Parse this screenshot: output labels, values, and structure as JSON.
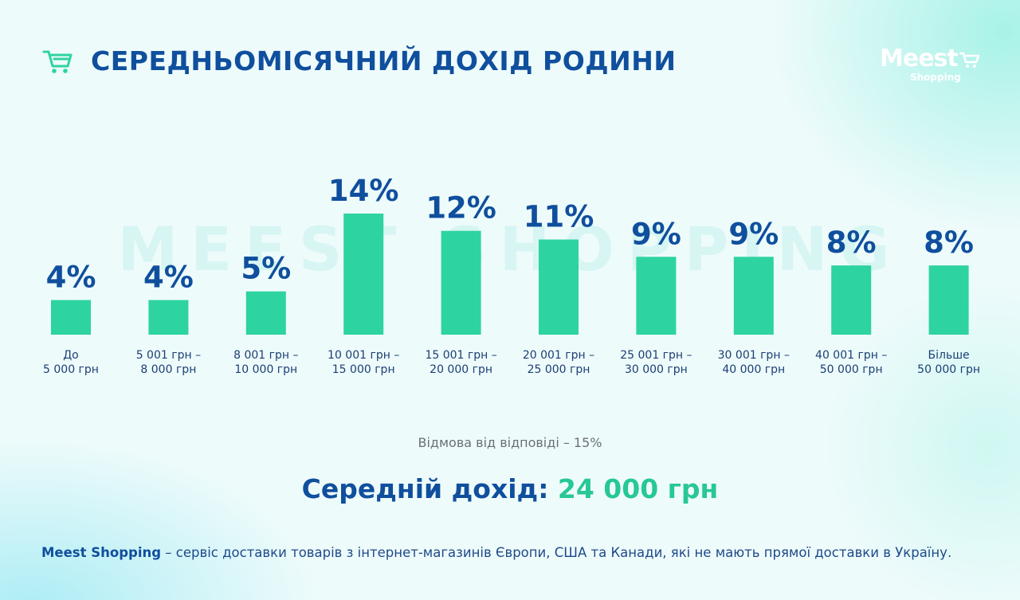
{
  "header": {
    "title": "СЕРЕДНЬОМІСЯЧНИЙ ДОХІД РОДИНИ",
    "icon": "shopping-cart-icon",
    "icon_color": "#2fd3a0"
  },
  "logo": {
    "main": "Meest",
    "sub": "Shopping",
    "icon": "shopping-cart-icon"
  },
  "watermark": "MEEST SHOPPING",
  "colors": {
    "bar": "#2dd3a0",
    "title": "#0f4f9d",
    "accent": "#27c796"
  },
  "chart_data": {
    "type": "bar",
    "categories": [
      [
        "До",
        "5 000 грн"
      ],
      [
        "5 001 грн –",
        "8 000 грн"
      ],
      [
        "8 001 грн –",
        "10 000 грн"
      ],
      [
        "10 001 грн –",
        "15 000 грн"
      ],
      [
        "15 001 грн –",
        "20 000 грн"
      ],
      [
        "20 001 грн –",
        "25 000 грн"
      ],
      [
        "25 001 грн –",
        "30 000 грн"
      ],
      [
        "30 001 грн –",
        "40 000 грн"
      ],
      [
        "40 001 грн –",
        "50 000 грн"
      ],
      [
        "Більше",
        "50 000 грн"
      ]
    ],
    "values": [
      4,
      4,
      5,
      14,
      12,
      11,
      9,
      9,
      8,
      8
    ],
    "value_labels": [
      "4%",
      "4%",
      "5%",
      "14%",
      "12%",
      "11%",
      "9%",
      "9%",
      "8%",
      "8%"
    ],
    "ylim": [
      0,
      14
    ],
    "grid": false
  },
  "notes": {
    "refusal": "Відмова від відповіді  – 15%",
    "average_label": "Середній дохід:",
    "average_value": "24 000 грн"
  },
  "footer": {
    "brand": "Meest Shopping",
    "text": " – сервіс доставки товарів з інтернет-магазинів Європи, США та Канади, які не мають прямої доставки в Україну."
  }
}
